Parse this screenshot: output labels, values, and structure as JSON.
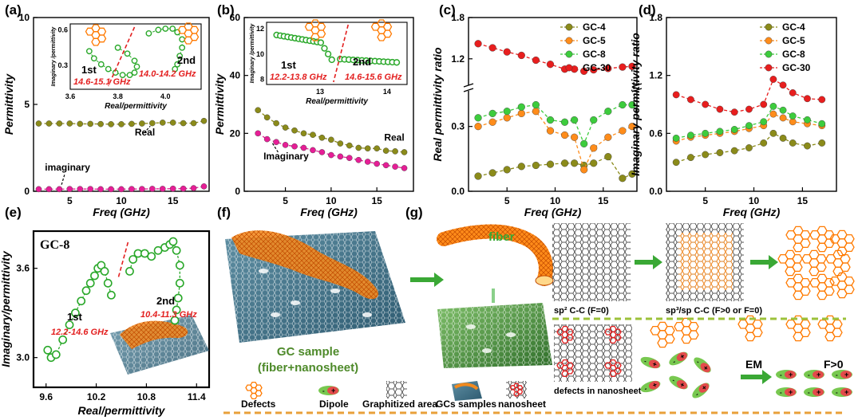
{
  "chart_data": [
    {
      "type": "scatter",
      "panel": "(a)",
      "ylabel": "Permittivity",
      "xlabel": "Freq (GHz)",
      "xlim": [
        1.5,
        18.5
      ],
      "ylim": [
        0,
        10
      ],
      "xticks": [
        "5",
        "10",
        "15"
      ],
      "yticks": [
        "0",
        "5",
        "10"
      ],
      "annotations": [
        "Real",
        "imaginary"
      ],
      "series": [
        {
          "name": "Real",
          "color": "#8b8b1a",
          "x": [
            2,
            3,
            4,
            5,
            6,
            7,
            8,
            9,
            10,
            11,
            12,
            13,
            14,
            15,
            16,
            17,
            18
          ],
          "y": [
            3.9,
            3.9,
            3.9,
            3.9,
            3.88,
            3.88,
            3.87,
            3.86,
            3.86,
            3.88,
            3.9,
            3.92,
            3.95,
            3.95,
            3.92,
            3.92,
            4.05
          ]
        },
        {
          "name": "imaginary",
          "color": "#e61e96",
          "x": [
            2,
            3,
            4,
            5,
            6,
            7,
            8,
            9,
            10,
            11,
            12,
            13,
            14,
            15,
            16,
            17,
            18
          ],
          "y": [
            0.12,
            0.12,
            0.12,
            0.13,
            0.13,
            0.13,
            0.12,
            0.12,
            0.12,
            0.13,
            0.13,
            0.14,
            0.14,
            0.15,
            0.15,
            0.18,
            0.28
          ]
        }
      ],
      "inset": {
        "xlabel": "Real/permittivity",
        "ylabel": "Imaginary /permittivity",
        "xlim": [
          3.6,
          4.15
        ],
        "ylim": [
          0.1,
          0.65
        ],
        "xticks": [
          "3.6",
          "3.8",
          "4.0"
        ],
        "yticks": [
          "0.3",
          "0.6"
        ],
        "labels": [
          "1st",
          "2nd"
        ],
        "ranges": [
          "14.6-15.1 GHz",
          "14.0-14.2 GHz"
        ]
      }
    },
    {
      "type": "scatter",
      "panel": "(b)",
      "ylabel": "Permittivity",
      "xlabel": "Freq (GHz)",
      "xlim": [
        0.5,
        19
      ],
      "ylim": [
        0,
        60
      ],
      "xticks": [
        "5",
        "10",
        "15"
      ],
      "yticks": [
        "0",
        "20",
        "40",
        "60"
      ],
      "annotations": [
        "Real",
        "Imaginary"
      ],
      "series": [
        {
          "name": "Real",
          "color": "#8b8b1a",
          "x": [
            2,
            3,
            4,
            5,
            6,
            7,
            8,
            9,
            10,
            11,
            12,
            13,
            14,
            15,
            16,
            17,
            18
          ],
          "y": [
            28,
            25.5,
            23.5,
            22,
            21,
            20,
            19.5,
            18.5,
            17.8,
            16.5,
            15.8,
            15,
            14.8,
            14.8,
            14,
            13.8,
            13.5
          ]
        },
        {
          "name": "Imaginary",
          "color": "#e61e96",
          "x": [
            2,
            3,
            4,
            5,
            6,
            7,
            8,
            9,
            10,
            11,
            12,
            13,
            14,
            15,
            16,
            17,
            18
          ],
          "y": [
            20,
            18,
            17,
            16,
            15.5,
            15,
            14.2,
            13.5,
            12.5,
            12,
            11.5,
            10.8,
            10.2,
            9.5,
            9,
            8.5,
            8
          ]
        }
      ],
      "inset": {
        "xlabel": "Real/permittivity",
        "ylabel": "Imaginary /permittivity",
        "xlim": [
          12.2,
          14.3
        ],
        "ylim": [
          7.6,
          12.5
        ],
        "xticks": [
          "13",
          "14"
        ],
        "yticks": [
          "8",
          "10",
          "12"
        ],
        "labels": [
          "1st",
          "2nd"
        ],
        "ranges": [
          "12.2-13.8 GHz",
          "14.6-15.6 GHz"
        ]
      }
    },
    {
      "type": "line",
      "panel": "(c)",
      "ylabel": "Real permittivity ratio",
      "xlabel": "Freq (GHz)",
      "xlim": [
        1,
        18.5
      ],
      "ylim_lower": [
        0,
        0.45
      ],
      "ylim_upper": [
        0.85,
        1.8
      ],
      "xticks": [
        "5",
        "10",
        "15"
      ],
      "yticks": [
        "0.0",
        "0.3",
        "1.2",
        "1.8"
      ],
      "legend": "top-right",
      "series": [
        {
          "name": "GC-4",
          "color": "#8b8b1a",
          "x": [
            2,
            3.5,
            5,
            6.5,
            8,
            9.5,
            11,
            12,
            13,
            14,
            15.5,
            17,
            18
          ],
          "y": [
            0.07,
            0.085,
            0.1,
            0.115,
            0.12,
            0.125,
            0.13,
            0.13,
            0.12,
            0.13,
            0.16,
            0.06,
            0.08
          ]
        },
        {
          "name": "GC-5",
          "color": "#ff8c1a",
          "x": [
            2,
            3.5,
            5,
            6.5,
            8,
            9.5,
            11,
            12,
            13,
            14,
            15.5,
            17,
            18
          ],
          "y": [
            0.3,
            0.32,
            0.34,
            0.36,
            0.37,
            0.28,
            0.26,
            0.25,
            0.1,
            0.2,
            0.25,
            0.28,
            0.3
          ]
        },
        {
          "name": "GC-8",
          "color": "#3dcc3d",
          "x": [
            2,
            3.5,
            5,
            6.5,
            8,
            9.5,
            11,
            12,
            13,
            14,
            15.5,
            17,
            18
          ],
          "y": [
            0.34,
            0.36,
            0.37,
            0.39,
            0.4,
            0.33,
            0.32,
            0.33,
            0.22,
            0.33,
            0.37,
            0.4,
            0.4
          ]
        },
        {
          "name": "GC-30",
          "color": "#e81e1e",
          "x": [
            2,
            3.5,
            5,
            6.5,
            8,
            9.5,
            11,
            12,
            13,
            14,
            15.5,
            17,
            18
          ],
          "y": [
            1.42,
            1.36,
            1.3,
            1.25,
            1.18,
            1.12,
            1.05,
            1.05,
            1.02,
            1.04,
            1.06,
            1.08,
            1.09
          ]
        }
      ]
    },
    {
      "type": "line",
      "panel": "(d)",
      "ylabel": "Imaginary permittivity ratio",
      "xlabel": "Freq (GHz)",
      "xlim": [
        1,
        18.5
      ],
      "ylim": [
        0,
        1.8
      ],
      "xticks": [
        "5",
        "10",
        "15"
      ],
      "yticks": [
        "0.0",
        "0.6",
        "1.2",
        "1.8"
      ],
      "legend": "top-right",
      "series": [
        {
          "name": "GC-4",
          "color": "#8b8b1a",
          "x": [
            2,
            3.5,
            5,
            6.5,
            8,
            9.5,
            11,
            12,
            13,
            14,
            15.5,
            17
          ],
          "y": [
            0.3,
            0.35,
            0.38,
            0.4,
            0.42,
            0.45,
            0.5,
            0.6,
            0.55,
            0.5,
            0.47,
            0.5
          ]
        },
        {
          "name": "GC-5",
          "color": "#ff8c1a",
          "x": [
            2,
            3.5,
            5,
            6.5,
            8,
            9.5,
            11,
            12,
            13,
            14,
            15.5,
            17
          ],
          "y": [
            0.52,
            0.56,
            0.58,
            0.6,
            0.62,
            0.65,
            0.68,
            0.8,
            0.76,
            0.72,
            0.7,
            0.68
          ]
        },
        {
          "name": "GC-8",
          "color": "#3dcc3d",
          "x": [
            2,
            3.5,
            5,
            6.5,
            8,
            9.5,
            11,
            12,
            13,
            14,
            15.5,
            17
          ],
          "y": [
            0.55,
            0.58,
            0.6,
            0.62,
            0.64,
            0.68,
            0.72,
            0.88,
            0.84,
            0.78,
            0.74,
            0.7
          ]
        },
        {
          "name": "GC-30",
          "color": "#e81e1e",
          "x": [
            2,
            3.5,
            5,
            6.5,
            8,
            9.5,
            11,
            12,
            13,
            14,
            15.5,
            17
          ],
          "y": [
            1.0,
            0.95,
            0.9,
            0.85,
            0.82,
            0.85,
            0.9,
            1.16,
            1.1,
            1.02,
            0.96,
            0.95
          ]
        }
      ]
    },
    {
      "type": "scatter",
      "panel": "(e)",
      "title": "GC-8",
      "ylabel": "Imaginary/permittivity",
      "xlabel": "Real/permittivity",
      "xlim": [
        9.45,
        11.55
      ],
      "ylim": [
        2.8,
        3.85
      ],
      "xticks": [
        "9.6",
        "10.2",
        "10.8",
        "11.4"
      ],
      "yticks": [
        "3.0",
        "3.6"
      ],
      "labels": [
        "1st",
        "2nd"
      ],
      "ranges": [
        "12.2-14.6 GHz",
        "10.4-11.3 GHz"
      ],
      "series": [
        {
          "name": "1st",
          "color": "#2aa82a",
          "x": [
            9.62,
            9.66,
            9.72,
            9.8,
            9.88,
            9.95,
            10.02,
            10.08,
            10.13,
            10.18,
            10.22,
            10.26,
            10.3,
            10.34,
            10.38
          ],
          "y": [
            3.05,
            3.0,
            3.02,
            3.12,
            3.22,
            3.3,
            3.38,
            3.45,
            3.5,
            3.55,
            3.6,
            3.62,
            3.58,
            3.5,
            3.42
          ]
        },
        {
          "name": "2nd",
          "color": "#2aa82a",
          "x": [
            10.6,
            10.64,
            10.7,
            10.78,
            10.86,
            10.94,
            11.02,
            11.08,
            11.12,
            11.16,
            11.2,
            11.2,
            11.18,
            11.16,
            11.14
          ],
          "y": [
            3.58,
            3.66,
            3.7,
            3.7,
            3.68,
            3.72,
            3.74,
            3.76,
            3.78,
            3.72,
            3.62,
            3.5,
            3.4,
            3.32,
            3.25
          ]
        }
      ]
    }
  ],
  "legend_labels": [
    "GC-4",
    "GC-5",
    "GC-8",
    "GC-30"
  ],
  "figure_text": {
    "f_title1": "GC sample",
    "f_title2": "(fiber+nanosheet)",
    "g_fiber": "fiber",
    "g_sp2": "sp² C-C (F=0)",
    "g_sp3": "sp³/sp C-C (F>0 or F=0)",
    "g_defects": "defects in nanosheet",
    "g_em": "EM",
    "g_f": "F>0"
  },
  "legend_bottom": [
    "Defects",
    "Dipole",
    "Graphitized area",
    "GCs samples",
    "nanosheet"
  ],
  "panel_labels": [
    "(a)",
    "(b)",
    "(c)",
    "(d)",
    "(e)",
    "(f)",
    "(g)"
  ],
  "colors": {
    "gc4": "#8b8b1a",
    "gc5": "#ff8c1a",
    "gc8": "#3dcc3d",
    "gc30": "#e81e1e",
    "pink": "#e61e96",
    "accent_red": "#e32020",
    "green_text": "#4e8a2a"
  }
}
